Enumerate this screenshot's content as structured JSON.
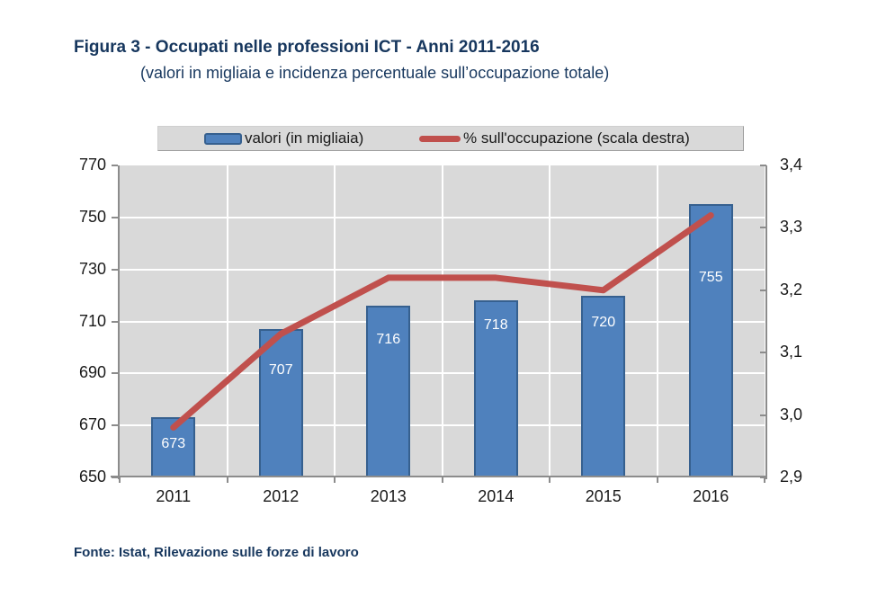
{
  "figure": {
    "title": "Figura 3 - Occupati nelle professioni ICT - Anni 2011-2016",
    "subtitle": "(valori in migliaia e incidenza percentuale sull’occupazione totale)",
    "source": "Fonte: Istat, Rilevazione sulle forze di lavoro"
  },
  "legend": {
    "bar_label": "valori (in migliaia)",
    "line_label": "% sull'occupazione (scala destra)"
  },
  "chart_data": {
    "type": "bar",
    "subtype": "bar-and-line-dual-axis",
    "title": "Figura 3 - Occupati nelle professioni ICT - Anni 2011-2016",
    "subtitle": "(valori in migliaia e incidenza percentuale sull’occupazione totale)",
    "categories": [
      "2011",
      "2012",
      "2013",
      "2014",
      "2015",
      "2016"
    ],
    "series": [
      {
        "name": "valori (in migliaia)",
        "type": "bar",
        "axis": "left",
        "values": [
          673,
          707,
          716,
          718,
          720,
          755
        ],
        "data_labels": [
          "673",
          "707",
          "716",
          "718",
          "720",
          "755"
        ],
        "color": "#4F81BD",
        "border_color": "#36608F"
      },
      {
        "name": "% sull'occupazione (scala destra)",
        "type": "line",
        "axis": "right",
        "values": [
          2.98,
          3.13,
          3.22,
          3.22,
          3.2,
          3.32
        ],
        "color": "#C0504D"
      }
    ],
    "left_axis": {
      "min": 650,
      "max": 770,
      "step": 20,
      "tick_labels": [
        "650",
        "670",
        "690",
        "710",
        "730",
        "750",
        "770"
      ]
    },
    "right_axis": {
      "min": 2.9,
      "max": 3.4,
      "step": 0.1,
      "tick_labels": [
        "2,9",
        "3,0",
        "3,1",
        "3,2",
        "3,3",
        "3,4"
      ]
    },
    "grid": "white-on-gray",
    "plot_background": "#D9D9D9",
    "legend_position": "top",
    "legend_background": "#D9D9D9"
  },
  "colors": {
    "heading": "#17375E",
    "bar_fill": "#4F81BD",
    "bar_border": "#36608F",
    "line": "#C0504D",
    "plot_bg": "#D9D9D9",
    "axis": "#8C8C8C",
    "gridline": "#FFFFFF"
  }
}
